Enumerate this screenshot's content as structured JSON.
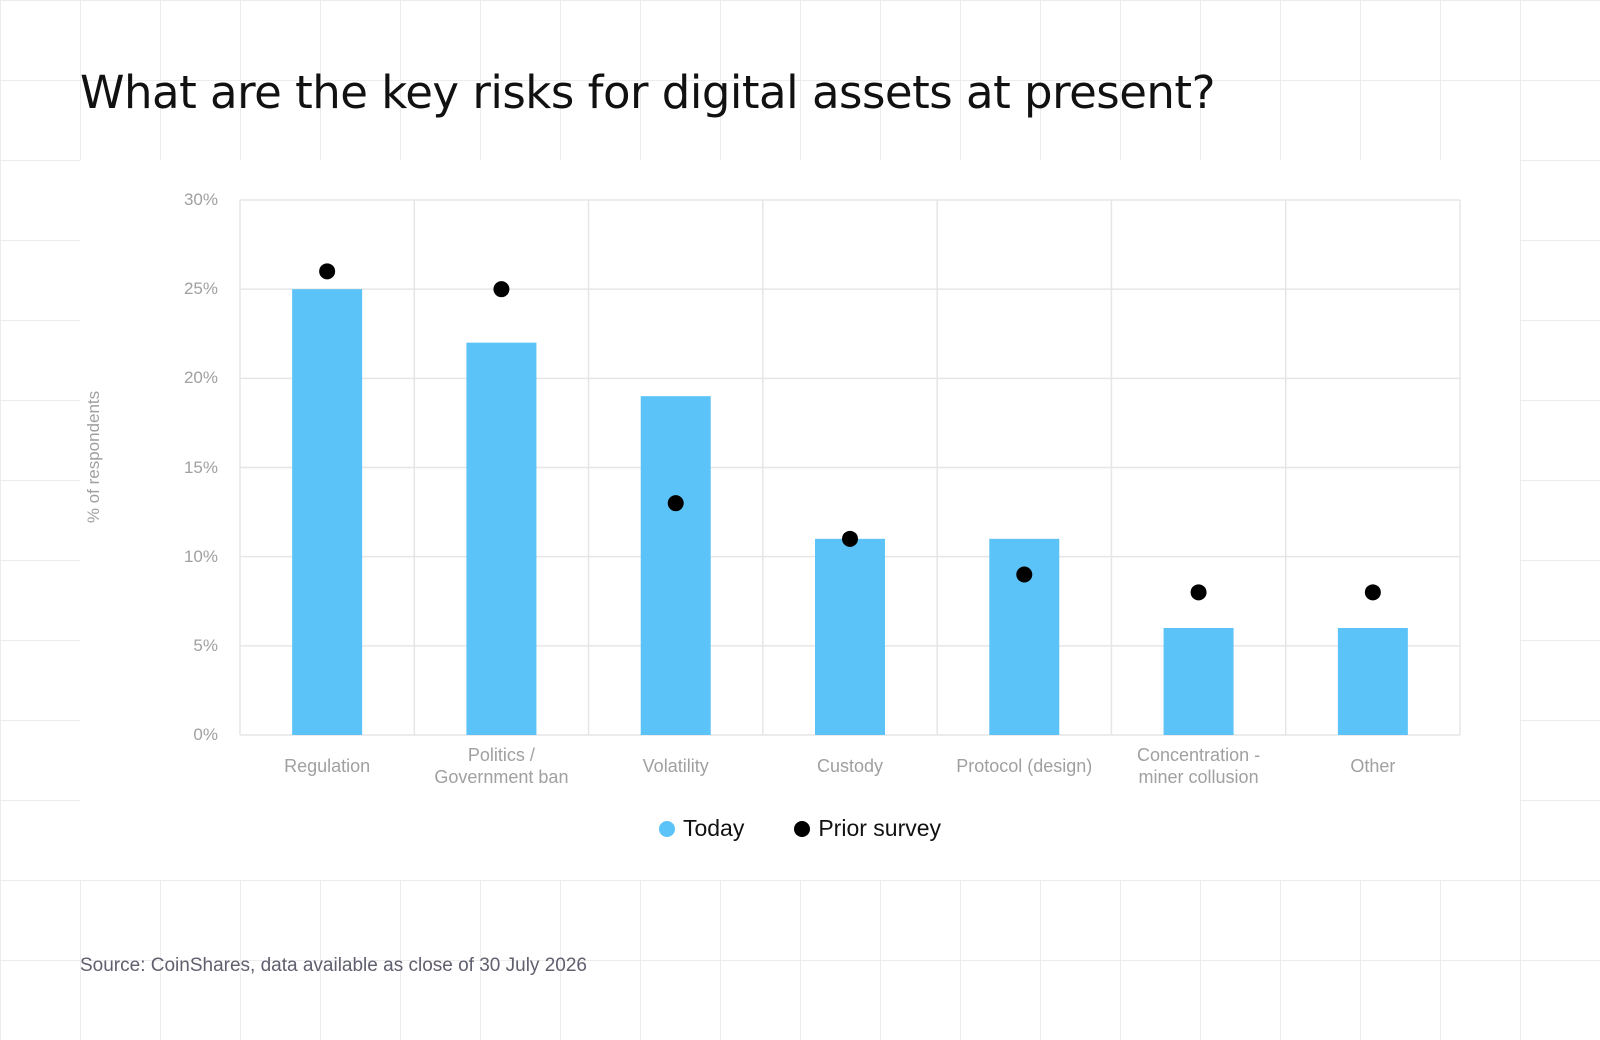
{
  "title": "What are the key risks for digital assets at present?",
  "source": "Source: CoinShares, data available as close of 30 July 2026",
  "colors": {
    "today": "#5BC3F7",
    "prior": "#000000",
    "grid": "#e6e6e6"
  },
  "chart_data": {
    "type": "bar",
    "title": "What are the key risks for digital assets at present?",
    "ylabel": "% of respondents",
    "xlabel": "",
    "ylim": [
      0,
      30
    ],
    "yticks": [
      "0%",
      "5%",
      "10%",
      "15%",
      "20%",
      "25%",
      "30%"
    ],
    "categories": [
      [
        "Regulation"
      ],
      [
        "Politics /",
        "Government ban"
      ],
      [
        "Volatility"
      ],
      [
        "Custody"
      ],
      [
        "Protocol (design)"
      ],
      [
        "Concentration -",
        "miner collusion"
      ],
      [
        "Other"
      ]
    ],
    "series": [
      {
        "name": "Today",
        "mark": "bar",
        "values": [
          25,
          22,
          19,
          11,
          11,
          6,
          6
        ]
      },
      {
        "name": "Prior survey",
        "mark": "dot",
        "values": [
          26,
          25,
          13,
          11,
          9,
          8,
          8
        ]
      }
    ],
    "grid": true,
    "legend": "bottom-center"
  }
}
